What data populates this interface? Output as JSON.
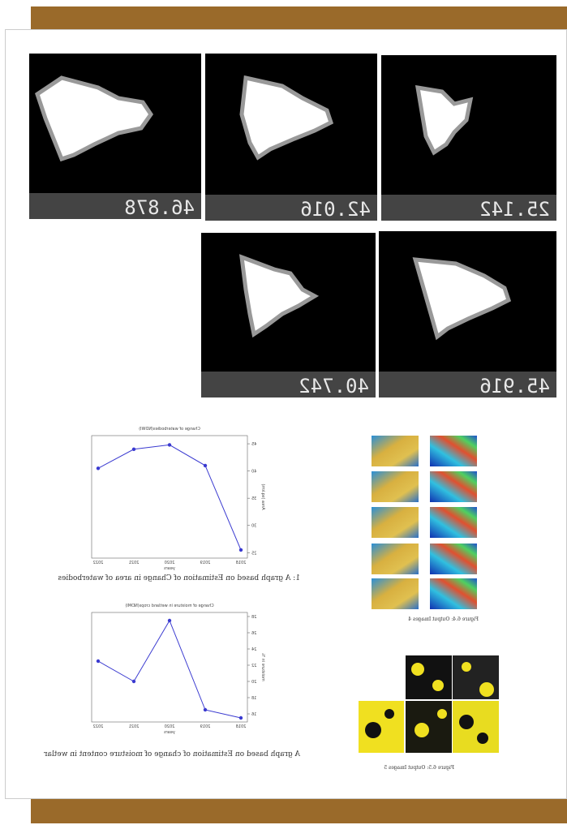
{
  "tiles": [
    {
      "label": "46.878"
    },
    {
      "label": "42.016"
    },
    {
      "label": "25.142"
    },
    {
      "label": "40.742"
    },
    {
      "label": "45.916"
    }
  ],
  "charts": [
    {
      "type": "line",
      "title": "Change of waterbodies(NDWI)",
      "x_label": "years",
      "y_label": "Area (sq.km)",
      "categories": [
        "2018",
        "2019",
        "2020",
        "2021",
        "2022"
      ],
      "values": [
        25.5,
        41,
        44.8,
        44,
        40.5
      ],
      "color": "#3a3ad0",
      "ylim": [
        24,
        46.5
      ],
      "yticks": [
        25,
        30,
        35,
        40,
        45
      ]
    },
    {
      "type": "line",
      "title": "Change of moisture in wetland crops(NDMI)",
      "x_label": "years",
      "y_label": "moisture in %",
      "categories": [
        "2018",
        "2019",
        "2020",
        "2021",
        "2022"
      ],
      "values": [
        15.5,
        16.5,
        27.5,
        20,
        22.5
      ],
      "color": "#3a3ad0",
      "ylim": [
        15,
        28.5
      ],
      "yticks": [
        16,
        18,
        20,
        22,
        24,
        26,
        28
      ]
    }
  ],
  "captions": [
    "1: A graph based on Estimation of Change in area of waterbodies",
    "A graph based on Estimation of change of moisture content in wetlar"
  ],
  "figure_captions": [
    "Figure 6.4: Output Images 4",
    "Figure 6.5: Output Images 5"
  ]
}
